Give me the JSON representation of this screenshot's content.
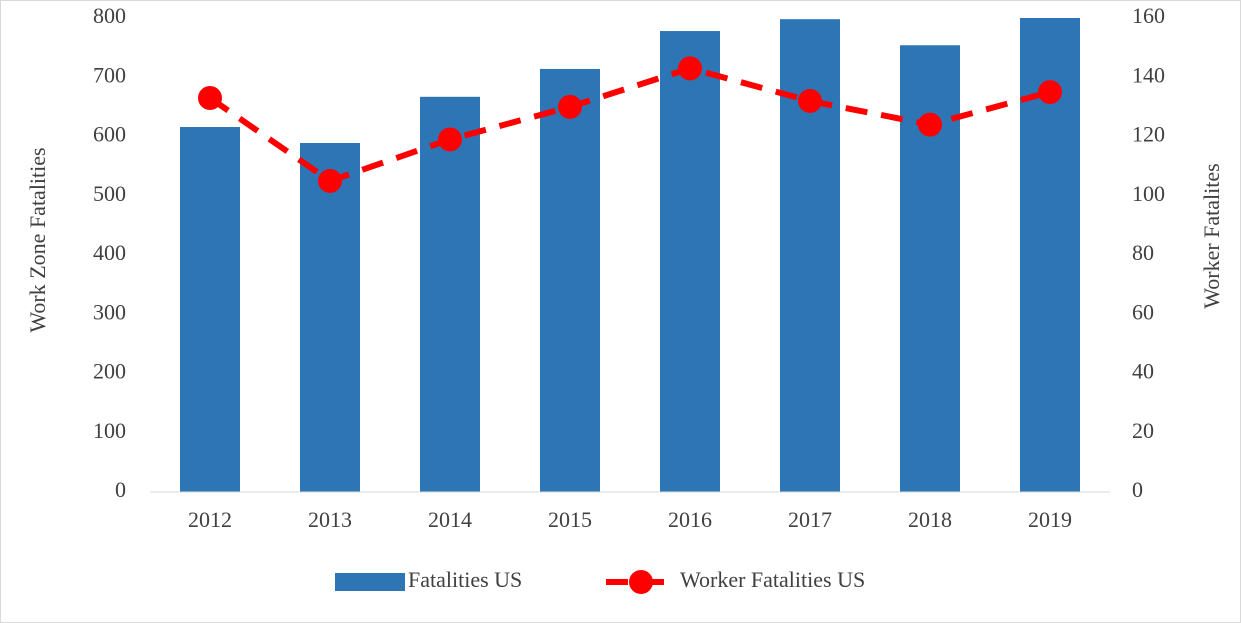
{
  "chart_data": {
    "type": "bar",
    "categories": [
      "2012",
      "2013",
      "2014",
      "2015",
      "2016",
      "2017",
      "2018",
      "2019"
    ],
    "series": [
      {
        "name": "Fatalities US",
        "type": "bar",
        "color": "#2e75b6",
        "values": [
          616,
          589,
          667,
          714,
          778,
          798,
          754,
          800
        ]
      },
      {
        "name": "Worker Fatalities US",
        "type": "line",
        "axis": "y2",
        "color": "#ff0000",
        "values": [
          133,
          105,
          119,
          130,
          143,
          132,
          124,
          135
        ]
      }
    ],
    "ylabel": "Work Zone Fatalities",
    "y2label": "Worker Fatalites",
    "ylim": [
      0,
      800
    ],
    "yticks": [
      0,
      100,
      200,
      300,
      400,
      500,
      600,
      700,
      800
    ],
    "y2lim": [
      0,
      160
    ],
    "y2ticks": [
      0,
      20,
      40,
      60,
      80,
      100,
      120,
      140,
      160
    ],
    "grid": false,
    "legend": "bottom"
  }
}
